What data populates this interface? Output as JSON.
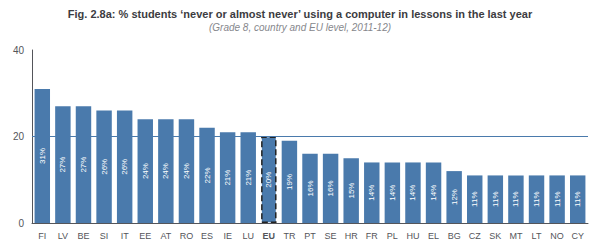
{
  "chart_data": {
    "type": "bar",
    "title": "Fig. 2.8a: % students ‘never or almost never’ using a computer in lessons in the last year",
    "subtitle": "(Grade 8, country and EU level, 2011-12)",
    "categories": [
      "FI",
      "LV",
      "BE",
      "SI",
      "IT",
      "EE",
      "AT",
      "RO",
      "ES",
      "IE",
      "LU",
      "EU",
      "TR",
      "PT",
      "SE",
      "HR",
      "FR",
      "PL",
      "HU",
      "EL",
      "BG",
      "CZ",
      "SK",
      "MT",
      "LT",
      "NO",
      "CY"
    ],
    "values": [
      31,
      27,
      27,
      26,
      26,
      24,
      24,
      24,
      22,
      21,
      21,
      20,
      19,
      16,
      16,
      15,
      14,
      14,
      14,
      14,
      12,
      11,
      11,
      11,
      11,
      11,
      11
    ],
    "value_labels": [
      "31%",
      "27%",
      "27%",
      "26%",
      "26%",
      "24%",
      "24%",
      "24%",
      "22%",
      "21%",
      "21%",
      "20%",
      "19%",
      "16%",
      "16%",
      "15%",
      "14%",
      "14%",
      "14%",
      "14%",
      "12%",
      "11%",
      "11%",
      "11%",
      "11%",
      "11%",
      "11%"
    ],
    "data_labels": true,
    "color": "#4a7aac",
    "highlight": "EU",
    "hline": 20,
    "ylim": [
      0,
      40
    ],
    "yticks": [
      0,
      20,
      40
    ],
    "grid": false
  }
}
